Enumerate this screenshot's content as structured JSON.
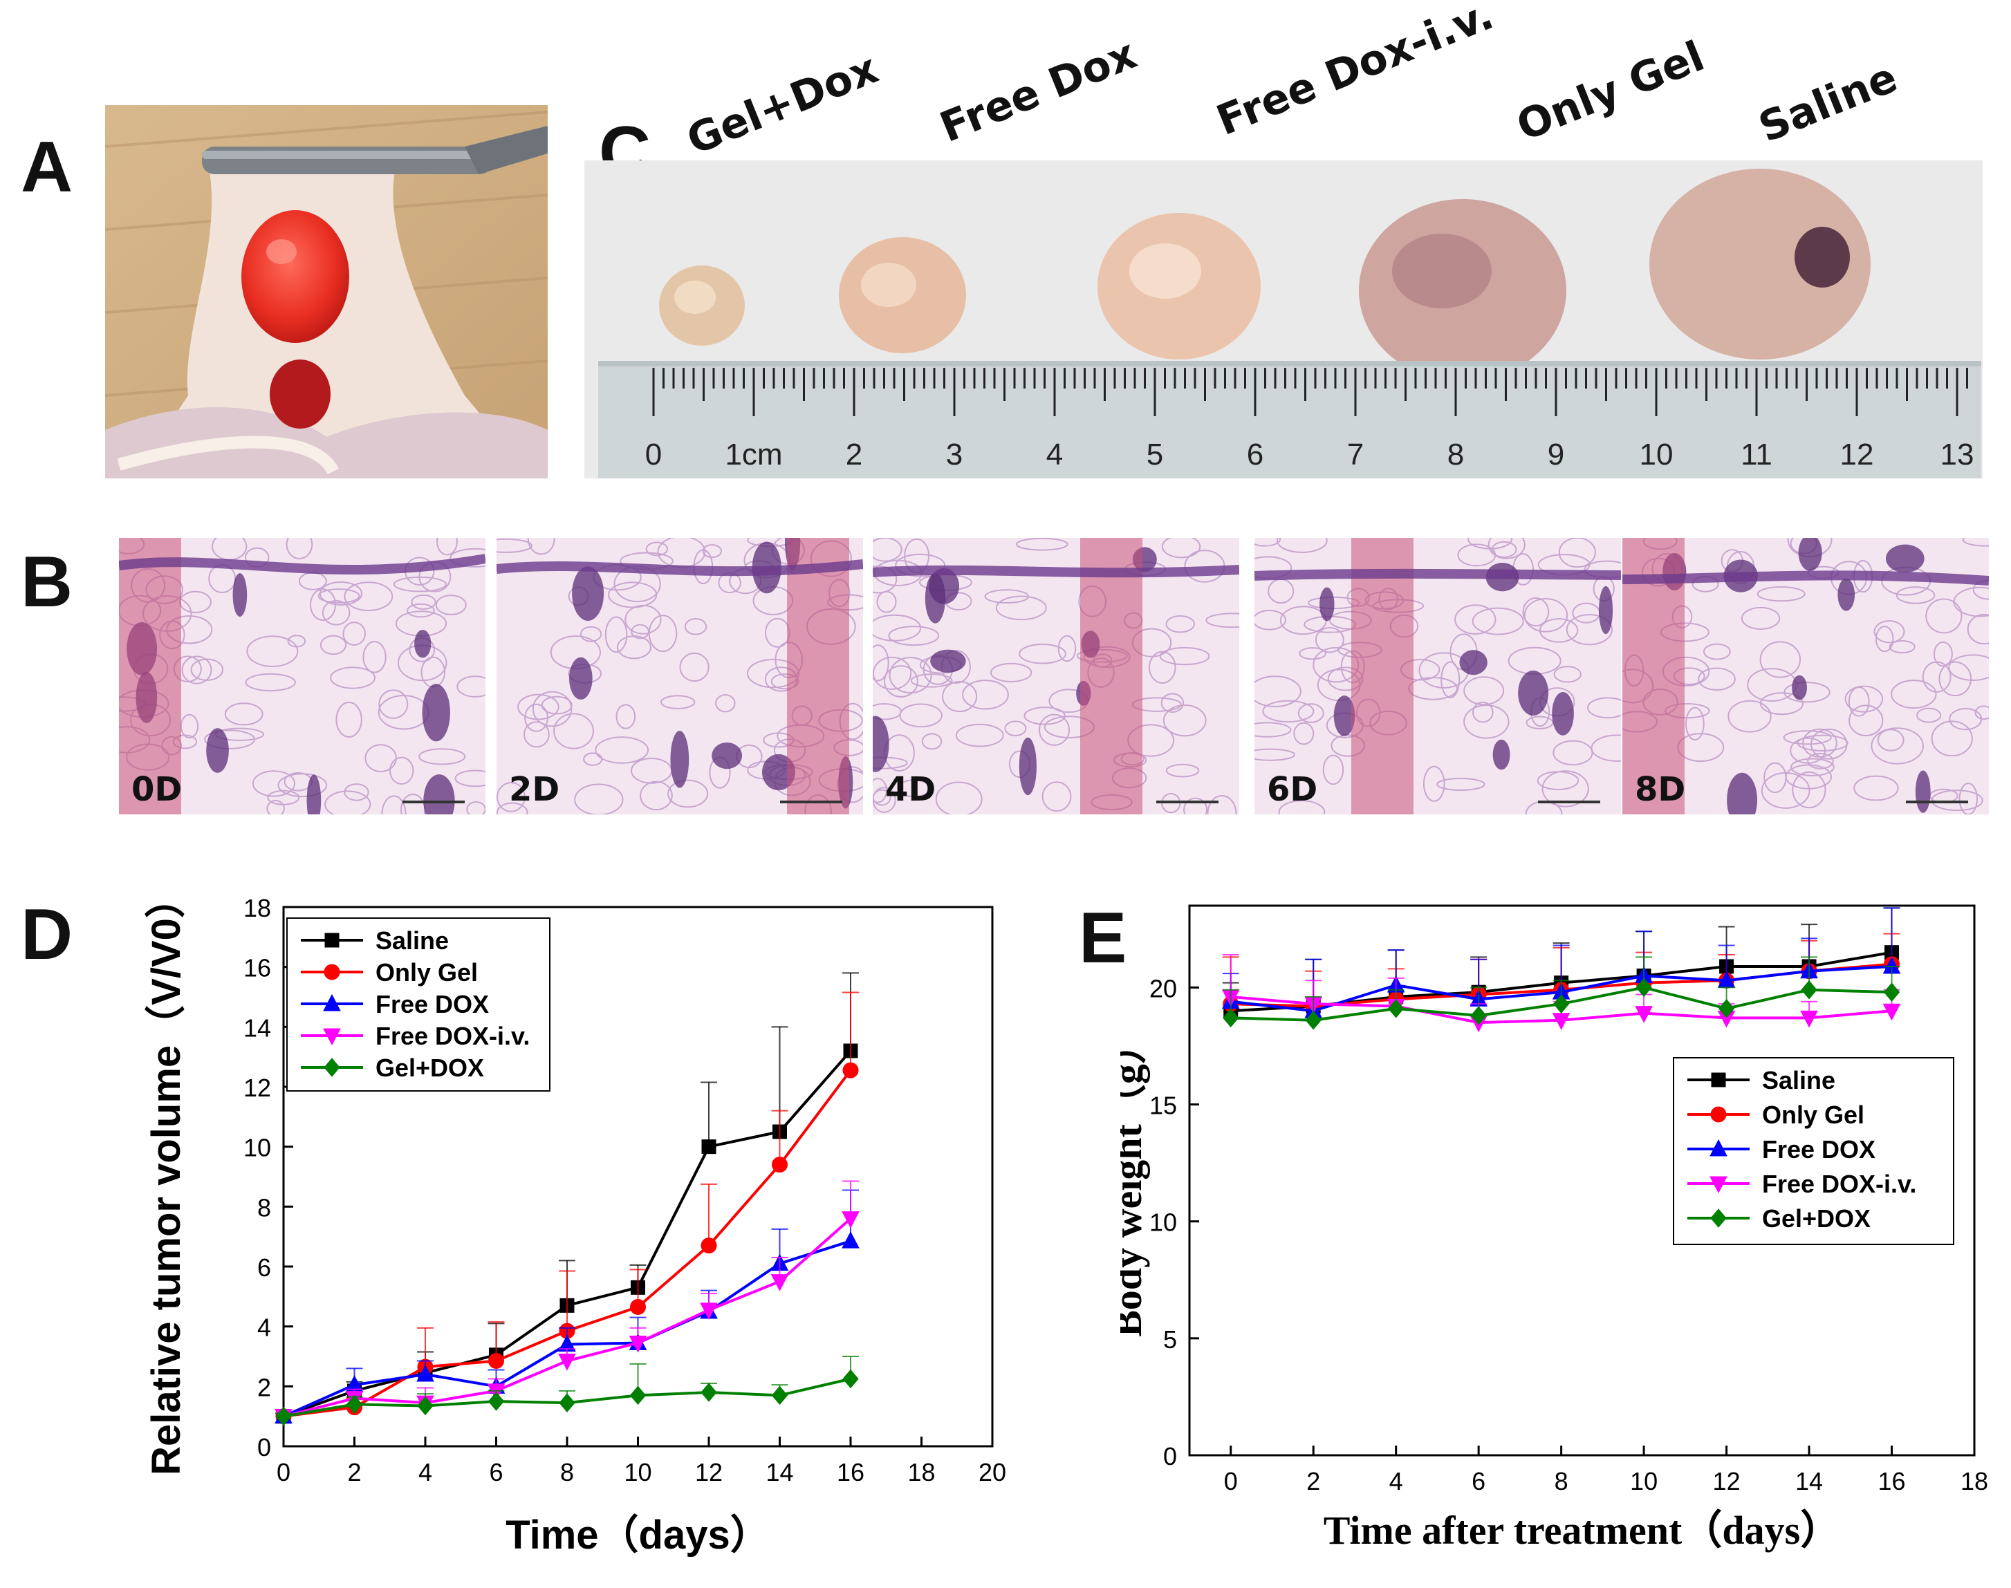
{
  "panels": {
    "A": {
      "letter": "A"
    },
    "B": {
      "letter": "B",
      "labels": [
        "0D",
        "2D",
        "4D",
        "6D",
        "8D"
      ]
    },
    "C": {
      "letter": "C",
      "groups": [
        "Gel+Dox",
        "Free Dox",
        "Free Dox-i.v.",
        "Only Gel",
        "Saline"
      ],
      "ruler_numbers": [
        "0",
        "1cm",
        "2",
        "3",
        "4",
        "5",
        "6",
        "7",
        "8",
        "9",
        "10",
        "11",
        "12",
        "13"
      ]
    },
    "D": {
      "letter": "D"
    },
    "E": {
      "letter": "E"
    }
  },
  "colors": {
    "Saline": "#000000",
    "Only Gel": "#ff0000",
    "Free DOX": "#0000ff",
    "Free DOX-i.v.": "#ff00ff",
    "Gel+DOX": "#008000"
  },
  "chart_data": [
    {
      "id": "D",
      "type": "line",
      "title": "",
      "xlabel": "Time（days）",
      "ylabel": "Relative tumor volume（V/V0）",
      "xlim": [
        0,
        20
      ],
      "ylim": [
        0,
        18
      ],
      "xticks": [
        "0",
        "2",
        "4",
        "6",
        "8",
        "10",
        "12",
        "14",
        "16",
        "18",
        "20"
      ],
      "yticks": [
        "0",
        "2",
        "4",
        "6",
        "8",
        "10",
        "12",
        "14",
        "16",
        "18"
      ],
      "legend_position": "top-left",
      "x": [
        0,
        2,
        4,
        6,
        8,
        10,
        12,
        14,
        16
      ],
      "series": [
        {
          "name": "Saline",
          "marker": "square",
          "values": [
            1.0,
            1.85,
            2.45,
            3.05,
            4.7,
            5.3,
            10.0,
            10.5,
            13.2
          ],
          "errors": [
            0.1,
            0.3,
            0.7,
            1.05,
            1.5,
            0.75,
            2.15,
            3.5,
            2.6
          ]
        },
        {
          "name": "Only Gel",
          "marker": "circle",
          "values": [
            1.0,
            1.3,
            2.65,
            2.85,
            3.85,
            4.65,
            6.7,
            9.4,
            12.55
          ],
          "errors": [
            0.1,
            0.3,
            1.3,
            1.3,
            2.0,
            1.25,
            2.05,
            1.8,
            2.6
          ]
        },
        {
          "name": "Free DOX",
          "marker": "triangle-up",
          "values": [
            1.0,
            2.05,
            2.4,
            2.0,
            3.4,
            3.45,
            4.5,
            6.1,
            6.85
          ],
          "errors": [
            0.1,
            0.55,
            0.45,
            0.55,
            0.55,
            0.85,
            0.7,
            1.15,
            1.7
          ]
        },
        {
          "name": "Free DOX-i.v.",
          "marker": "triangle-down",
          "values": [
            1.0,
            1.6,
            1.45,
            1.85,
            2.85,
            3.45,
            4.55,
            5.5,
            7.6
          ],
          "errors": [
            0.1,
            0.3,
            0.5,
            0.4,
            0.4,
            0.5,
            0.55,
            0.8,
            1.25
          ]
        },
        {
          "name": "Gel+DOX",
          "marker": "diamond",
          "values": [
            1.0,
            1.4,
            1.35,
            1.5,
            1.45,
            1.7,
            1.8,
            1.7,
            2.25
          ],
          "errors": [
            0.1,
            0.25,
            0.4,
            0.35,
            0.4,
            1.05,
            0.3,
            0.35,
            0.75
          ]
        }
      ]
    },
    {
      "id": "E",
      "type": "line",
      "title": "",
      "xlabel": "Time after treatment（days）",
      "ylabel": "Body weight（g）",
      "xlim": [
        -1,
        18
      ],
      "ylim": [
        0,
        23.5
      ],
      "xticks": [
        "0",
        "2",
        "4",
        "6",
        "8",
        "10",
        "12",
        "14",
        "16",
        "18"
      ],
      "yticks": [
        "0",
        "5",
        "10",
        "15",
        "20"
      ],
      "legend_position": "center-right",
      "x": [
        0,
        2,
        4,
        6,
        8,
        10,
        12,
        14,
        16
      ],
      "series": [
        {
          "name": "Saline",
          "marker": "square",
          "values": [
            19.0,
            19.2,
            19.6,
            19.8,
            20.2,
            20.5,
            20.9,
            20.9,
            21.5
          ],
          "errors": [
            1.2,
            2.0,
            2.0,
            1.5,
            1.7,
            1.9,
            1.7,
            1.8,
            1.9
          ]
        },
        {
          "name": "Only Gel",
          "marker": "circle",
          "values": [
            19.3,
            19.2,
            19.5,
            19.7,
            19.9,
            20.2,
            20.3,
            20.7,
            21.0
          ],
          "errors": [
            2.0,
            1.5,
            1.3,
            1.5,
            1.8,
            1.3,
            1.1,
            1.3,
            1.3
          ]
        },
        {
          "name": "Free DOX",
          "marker": "triangle-up",
          "values": [
            19.4,
            19.0,
            20.1,
            19.5,
            19.8,
            20.5,
            20.3,
            20.7,
            20.9
          ],
          "errors": [
            1.2,
            2.2,
            1.5,
            1.7,
            2.0,
            1.9,
            1.5,
            1.4,
            2.5
          ]
        },
        {
          "name": "Free DOX-i.v.",
          "marker": "triangle-down",
          "values": [
            19.6,
            19.3,
            19.2,
            18.5,
            18.6,
            18.9,
            18.7,
            18.7,
            19.0
          ],
          "errors": [
            1.8,
            1.0,
            1.2,
            0.8,
            0.8,
            0.8,
            0.6,
            0.7,
            0.9
          ]
        },
        {
          "name": "Gel+DOX",
          "marker": "diamond",
          "values": [
            18.7,
            18.6,
            19.1,
            18.8,
            19.3,
            20.0,
            19.1,
            19.9,
            19.8
          ],
          "errors": [
            1.2,
            1.0,
            0.8,
            1.2,
            1.0,
            1.3,
            0.9,
            1.4,
            1.1
          ]
        }
      ]
    }
  ]
}
